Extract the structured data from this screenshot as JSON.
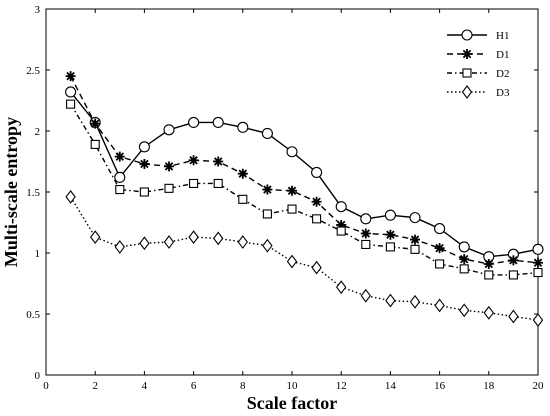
{
  "chart_data": {
    "type": "line",
    "xlabel": "Scale factor",
    "ylabel": "Multi-scale entropy",
    "xlim": [
      0,
      20
    ],
    "ylim": [
      0,
      3
    ],
    "xticks": [
      0,
      2,
      4,
      6,
      8,
      10,
      12,
      14,
      16,
      18,
      20
    ],
    "yticks": [
      0,
      0.5,
      1,
      1.5,
      2,
      2.5,
      3
    ],
    "grid": false,
    "legend_position": "top-right",
    "x": [
      1,
      2,
      3,
      4,
      5,
      6,
      7,
      8,
      9,
      10,
      11,
      12,
      13,
      14,
      15,
      16,
      17,
      18,
      19,
      20
    ],
    "series": [
      {
        "name": "H1",
        "marker": "circle",
        "line_style": "solid",
        "values": [
          2.32,
          2.07,
          1.62,
          1.87,
          2.01,
          2.07,
          2.07,
          2.03,
          1.98,
          1.83,
          1.66,
          1.38,
          1.28,
          1.31,
          1.29,
          1.2,
          1.05,
          0.97,
          0.99,
          1.03
        ]
      },
      {
        "name": "D1",
        "marker": "asterisk",
        "line_style": "dashed",
        "values": [
          2.45,
          2.06,
          1.79,
          1.73,
          1.71,
          1.76,
          1.75,
          1.65,
          1.52,
          1.51,
          1.42,
          1.23,
          1.16,
          1.15,
          1.11,
          1.04,
          0.95,
          0.91,
          0.94,
          0.92
        ]
      },
      {
        "name": "D2",
        "marker": "square",
        "line_style": "dash-dot",
        "values": [
          2.22,
          1.89,
          1.52,
          1.5,
          1.53,
          1.57,
          1.57,
          1.44,
          1.32,
          1.36,
          1.28,
          1.18,
          1.07,
          1.05,
          1.03,
          0.91,
          0.87,
          0.82,
          0.82,
          0.84
        ]
      },
      {
        "name": "D3",
        "marker": "diamond",
        "line_style": "dotted",
        "values": [
          1.46,
          1.13,
          1.05,
          1.08,
          1.09,
          1.13,
          1.12,
          1.09,
          1.06,
          0.93,
          0.88,
          0.72,
          0.65,
          0.61,
          0.6,
          0.57,
          0.53,
          0.51,
          0.48,
          0.45
        ]
      }
    ]
  }
}
